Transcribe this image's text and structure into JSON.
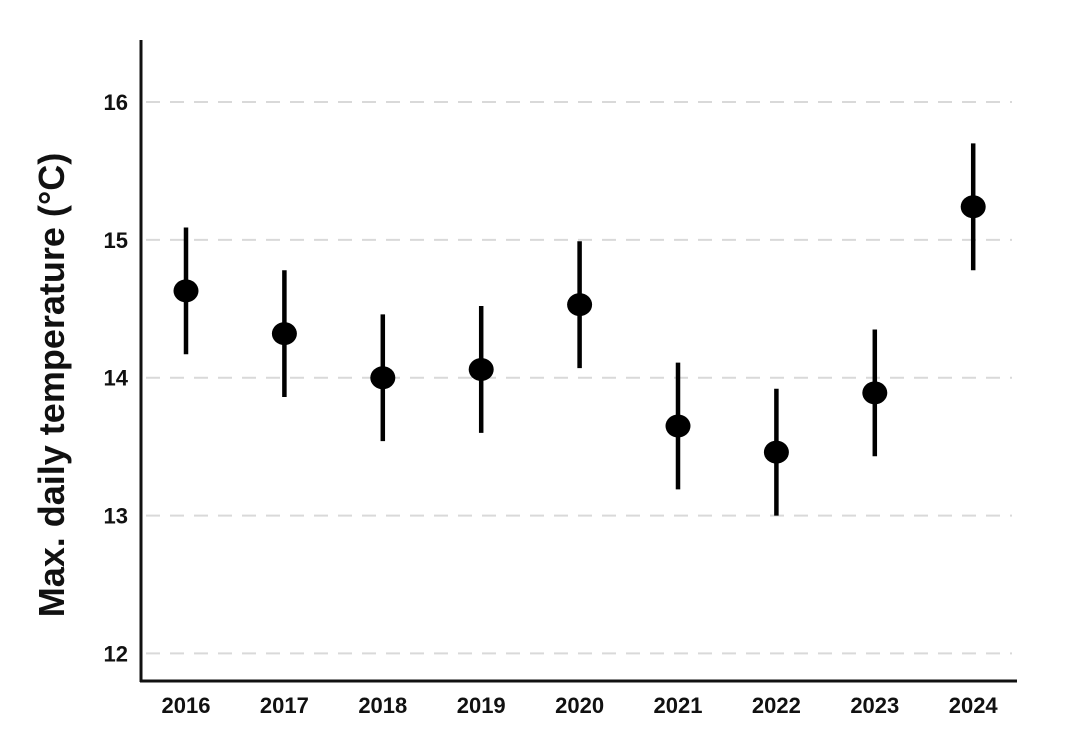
{
  "chart_data": {
    "type": "scatter",
    "title": "",
    "xlabel": "",
    "ylabel": "Max. daily temperature (°C)",
    "ylim": [
      11.8,
      16.45
    ],
    "yticks": [
      "12",
      "13",
      "14",
      "15",
      "16"
    ],
    "grid": "horizontal dashed",
    "legend": "none",
    "categories": [
      "2016",
      "2017",
      "2018",
      "2019",
      "2020",
      "2021",
      "2022",
      "2023",
      "2024"
    ],
    "series": [
      {
        "values": [
          14.63,
          14.32,
          14.0,
          14.06,
          14.53,
          13.65,
          13.46,
          13.89,
          15.24
        ],
        "lower": [
          14.17,
          13.86,
          13.54,
          13.6,
          14.07,
          13.19,
          13.0,
          13.43,
          14.78
        ],
        "upper": [
          15.09,
          14.78,
          14.46,
          14.52,
          14.99,
          14.11,
          13.92,
          14.35,
          15.7
        ]
      }
    ],
    "colors": {
      "marker": "#000000",
      "grid": "#d9d9d9",
      "axis": "#111111"
    }
  }
}
